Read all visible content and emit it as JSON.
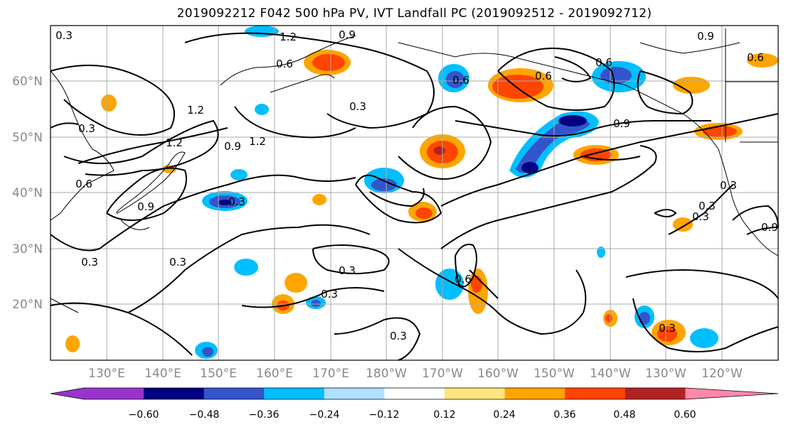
{
  "title": "2019092212 F042 500 hPa PV, IVT Landfall PC (2019092512 - 2019092712)",
  "lon_ticks": [
    "130°E",
    "140°E",
    "150°E",
    "160°E",
    "170°E",
    "180°W",
    "170°W",
    "160°W",
    "150°W",
    "140°W",
    "130°W",
    "120°W"
  ],
  "lat_ticks": [
    "60°N",
    "50°N",
    "40°N",
    "30°N",
    "20°N"
  ],
  "colorbar": {
    "labels": [
      "−0.60",
      "−0.48",
      "−0.36",
      "−0.24",
      "−0.12",
      "0.12",
      "0.24",
      "0.36",
      "0.48",
      "0.60"
    ],
    "colors": [
      "#9933cc",
      "#000080",
      "#3355cc",
      "#00bfff",
      "#b0e0ff",
      "#ffffff",
      "#ffe680",
      "#ffa500",
      "#ff4500",
      "#b22222",
      "#ff88aa"
    ]
  },
  "contour_labels": [
    "0.9",
    "1.2",
    "0.6",
    "0.3",
    "0.9",
    "0.6",
    "0.9",
    "0.3",
    "1.2",
    "1.2",
    "0.3",
    "0.9",
    "1.2",
    "0.6",
    "0.3",
    "0.3",
    "0.3",
    "0.6",
    "0.3",
    "0.6",
    "0.3",
    "0.3",
    "0.3",
    "0.9",
    "0.3",
    "0.3",
    "0.9",
    "0.6",
    "0.6",
    "0.3"
  ]
}
